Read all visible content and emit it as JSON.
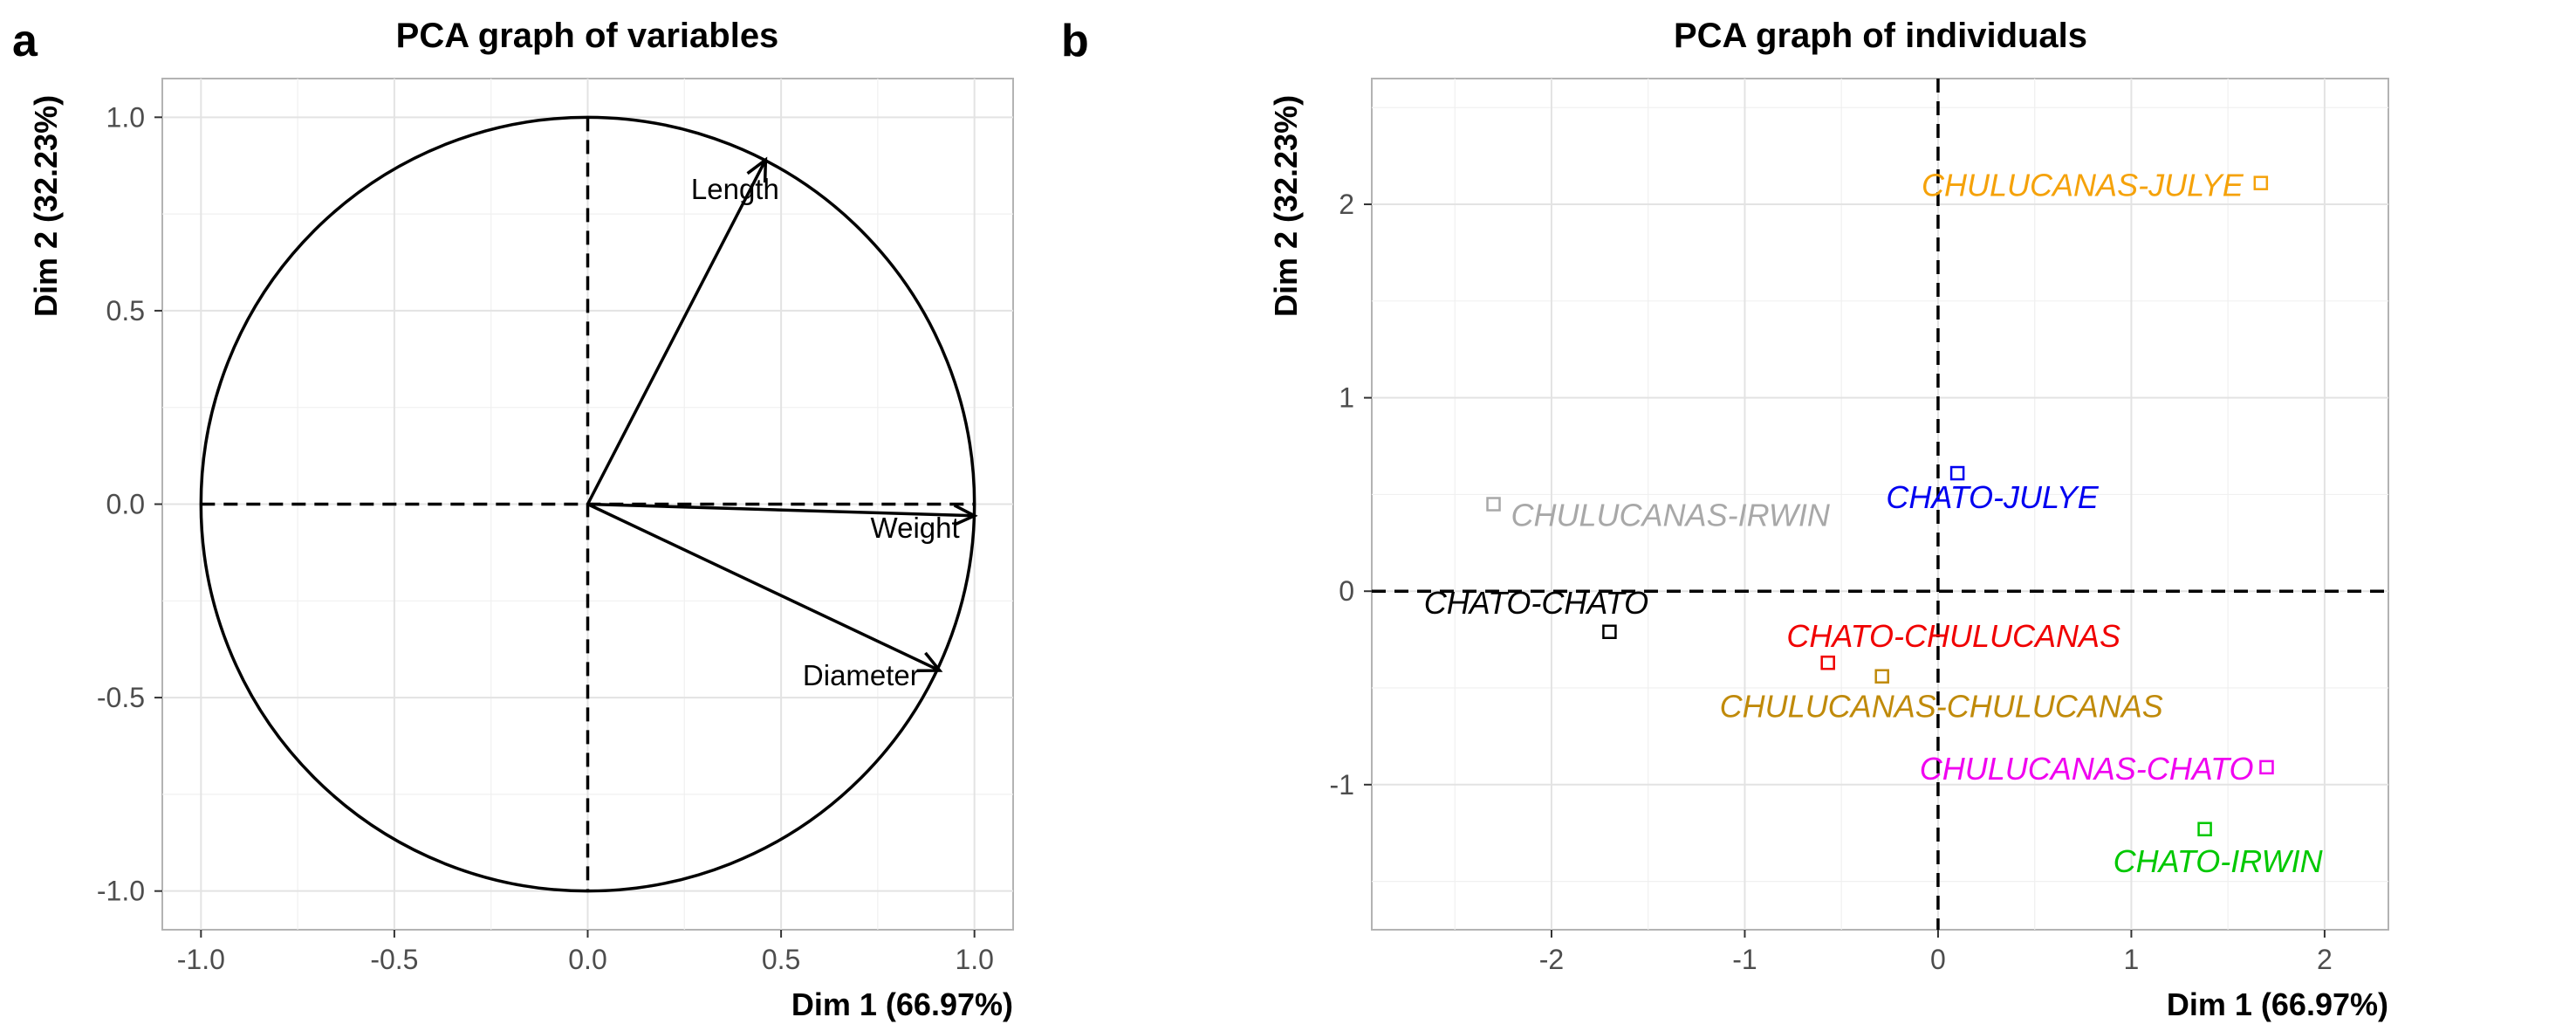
{
  "chart_data": [
    {
      "panel": "a",
      "type": "scatter",
      "title": "PCA graph of variables",
      "xlabel": "Dim 1 (66.97%)",
      "ylabel": "Dim 2 (32.23%)",
      "xlim": [
        -1.1,
        1.1
      ],
      "ylim": [
        -1.1,
        1.1
      ],
      "xticks": [
        -1.0,
        -0.5,
        0.0,
        0.5,
        1.0
      ],
      "yticks": [
        -1.0,
        -0.5,
        0.0,
        0.5,
        1.0
      ],
      "xtick_labels": [
        "-1.0",
        "-0.5",
        "0.0",
        "0.5",
        "1.0"
      ],
      "ytick_labels": [
        "-1.0",
        "-0.5",
        "0.0",
        "0.5",
        "1.0"
      ],
      "grid": true,
      "correlation_circle": true,
      "variables": [
        {
          "name": "Length",
          "x": 0.46,
          "y": 0.89
        },
        {
          "name": "Weight",
          "x": 1.0,
          "y": -0.03
        },
        {
          "name": "Diameter",
          "x": 0.91,
          "y": -0.43
        }
      ]
    },
    {
      "panel": "b",
      "type": "scatter",
      "title": "PCA graph of individuals",
      "xlabel": "Dim 1 (66.97%)",
      "ylabel": "Dim 2 (32.23%)",
      "xlim": [
        -2.93,
        2.33
      ],
      "ylim": [
        -1.75,
        2.65
      ],
      "xticks": [
        -2,
        -1,
        0,
        1,
        2
      ],
      "yticks": [
        -1,
        0,
        1,
        2
      ],
      "xtick_labels": [
        "-2",
        "-1",
        "0",
        "1",
        "2"
      ],
      "ytick_labels": [
        "-1",
        "0",
        "1",
        "2"
      ],
      "grid": true,
      "points": [
        {
          "name": "CHULUCANAS-JULYE",
          "x": 1.67,
          "y": 2.11,
          "color": "#F5A20A"
        },
        {
          "name": "CHATO-JULYE",
          "x": 0.1,
          "y": 0.61,
          "color": "#0000F0"
        },
        {
          "name": "CHULUCANAS-IRWIN",
          "x": -2.3,
          "y": 0.45,
          "color": "#A8A8A8"
        },
        {
          "name": "CHATO-CHATO",
          "x": -1.7,
          "y": -0.21,
          "color": "#000000"
        },
        {
          "name": "CHATO-CHULUCANAS",
          "x": -0.57,
          "y": -0.37,
          "color": "#F00000"
        },
        {
          "name": "CHULUCANAS-CHULUCANAS",
          "x": -0.29,
          "y": -0.44,
          "color": "#C08A0A"
        },
        {
          "name": "CHULUCANAS-CHATO",
          "x": 1.7,
          "y": -0.91,
          "color": "#F000F0"
        },
        {
          "name": "CHATO-IRWIN",
          "x": 1.38,
          "y": -1.23,
          "color": "#00C800"
        }
      ]
    }
  ]
}
